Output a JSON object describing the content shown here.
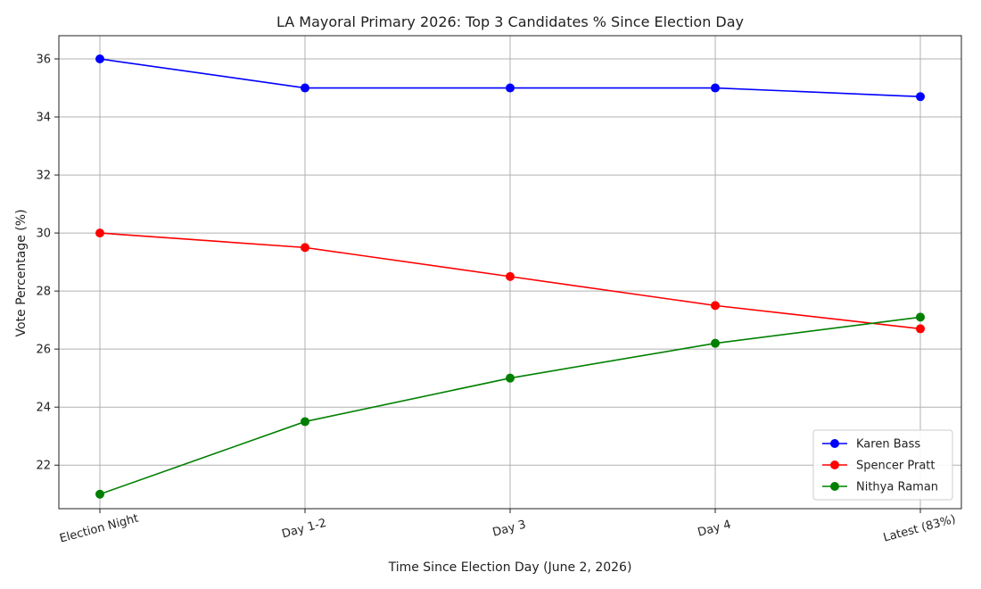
{
  "chart_data": {
    "type": "line",
    "title": "LA Mayoral Primary 2026: Top 3 Candidates % Since Election Day",
    "xlabel": "Time Since Election Day (June 2, 2026)",
    "ylabel": "Vote Percentage (%)",
    "categories": [
      "Election Night",
      "Day 1-2",
      "Day 3",
      "Day 4",
      "Latest (83%)"
    ],
    "ylim": [
      20.5,
      36.8
    ],
    "yticks": [
      22,
      24,
      26,
      28,
      30,
      32,
      34,
      36
    ],
    "grid": true,
    "legend_position": "bottom-right",
    "series": [
      {
        "name": "Karen Bass",
        "color": "#0000ff",
        "values": [
          36.0,
          35.0,
          35.0,
          35.0,
          34.7
        ]
      },
      {
        "name": "Spencer Pratt",
        "color": "#ff0000",
        "values": [
          30.0,
          29.5,
          28.5,
          27.5,
          26.7
        ]
      },
      {
        "name": "Nithya Raman",
        "color": "#008000",
        "values": [
          21.0,
          23.5,
          25.0,
          26.2,
          27.1
        ]
      }
    ]
  }
}
